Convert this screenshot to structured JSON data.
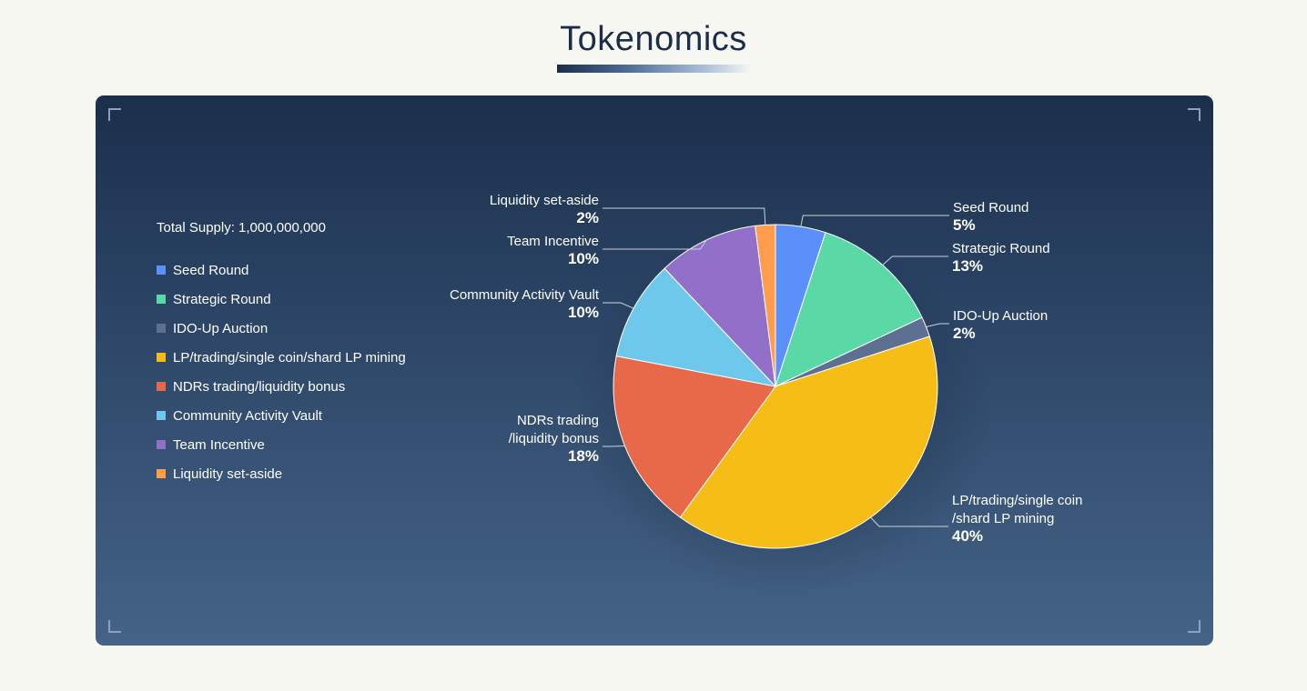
{
  "title": "Tokenomics",
  "chart_data": {
    "type": "pie",
    "total_supply_label": "Total Supply: 1,000,000,000",
    "legend_position": "left",
    "slices": [
      {
        "name": "Seed Round",
        "value": 5,
        "pct_label": "5%",
        "label_lines": [
          "Seed Round"
        ],
        "color": "#5b8ff9"
      },
      {
        "name": "Strategic Round",
        "value": 13,
        "pct_label": "13%",
        "label_lines": [
          "Strategic Round"
        ],
        "color": "#5ad8a6"
      },
      {
        "name": "IDO-Up Auction",
        "value": 2,
        "pct_label": "2%",
        "label_lines": [
          "IDO-Up Auction"
        ],
        "color": "#5d7092"
      },
      {
        "name": "LP/trading/single coin/shard LP mining",
        "value": 40,
        "pct_label": "40%",
        "label_lines": [
          "LP/trading/single coin",
          "/shard LP mining"
        ],
        "color": "#f6bd16"
      },
      {
        "name": "NDRs trading/liquidity bonus",
        "value": 18,
        "pct_label": "18%",
        "label_lines": [
          "NDRs trading",
          "/liquidity bonus"
        ],
        "color": "#e8684a"
      },
      {
        "name": "Community Activity Vault",
        "value": 10,
        "pct_label": "10%",
        "label_lines": [
          "Community Activity Vault"
        ],
        "color": "#6dc8ec"
      },
      {
        "name": "Team Incentive",
        "value": 10,
        "pct_label": "10%",
        "label_lines": [
          "Team Incentive"
        ],
        "color": "#9270ca"
      },
      {
        "name": "Liquidity set-aside",
        "value": 2,
        "pct_label": "2%",
        "label_lines": [
          "Liquidity set-aside"
        ],
        "color": "#ff9d4d"
      }
    ]
  }
}
